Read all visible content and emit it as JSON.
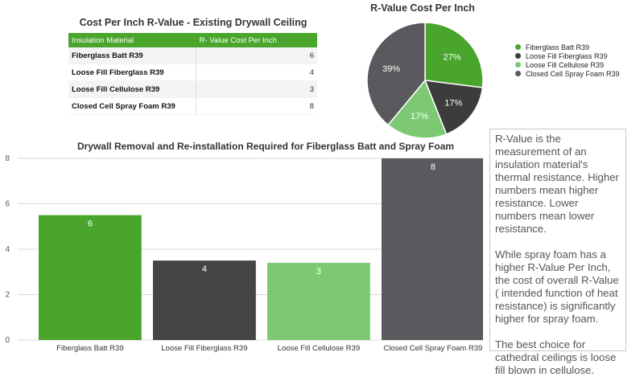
{
  "table": {
    "title": "Cost Per Inch R-Value - Existing Drywall Ceiling",
    "headers": [
      "Insulation Material",
      "R- Value Cost Per Inch"
    ],
    "rows": [
      {
        "name": "Fiberglass Batt R39",
        "value": "6"
      },
      {
        "name": "Loose Fill Fiberglass R39",
        "value": "4"
      },
      {
        "name": "Loose Fill Cellulose R39",
        "value": "3"
      },
      {
        "name": "Closed Cell Spray Foam R39",
        "value": "8"
      }
    ]
  },
  "chart_data": [
    {
      "type": "pie",
      "title": "R-Value Cost Per Inch",
      "categories": [
        "Fiberglass Batt R39",
        "Loose Fill Fiberglass R39",
        "Loose Fill Cellulose R39",
        "Closed Cell Spray Foam R39"
      ],
      "values": [
        27,
        17,
        17,
        39
      ],
      "labels": [
        "27%",
        "17%",
        "17%",
        "39%"
      ],
      "colors": [
        "#4aa52d",
        "#3c3c3c",
        "#7dc973",
        "#5a5a5e"
      ],
      "legend": "right"
    },
    {
      "type": "bar",
      "title": "Drywall Removal and Re-installation Required for Fiberglass Batt and Spray Foam",
      "categories": [
        "Fiberglass Batt R39",
        "Loose Fill Fiberglass R39",
        "Loose Fill Cellulose R39",
        "Closed Cell Spray Foam R39"
      ],
      "values": [
        5.5,
        3.5,
        3.4,
        8
      ],
      "data_labels": [
        "6",
        "4",
        "3",
        "8"
      ],
      "colors": [
        "#4aa52d",
        "#444444",
        "#7dc973",
        "#5a5a5e"
      ],
      "yticks": [
        "0",
        "2",
        "4",
        "6",
        "8"
      ],
      "ylim": [
        0,
        8
      ],
      "xlabel": "",
      "ylabel": "",
      "grid": true
    }
  ],
  "note": {
    "paragraphs": [
      "R-Value is the measurement of an insulation material's thermal resistance. Higher numbers mean higher resistance. Lower numbers mean lower resistance.",
      "While spray foam has a higher R-Value Per Inch, the cost of overall R-Value ( intended function of heat resistance) is significantly higher for spray foam.",
      "The best choice for cathedral ceilings is loose fill blown in cellulose."
    ]
  }
}
